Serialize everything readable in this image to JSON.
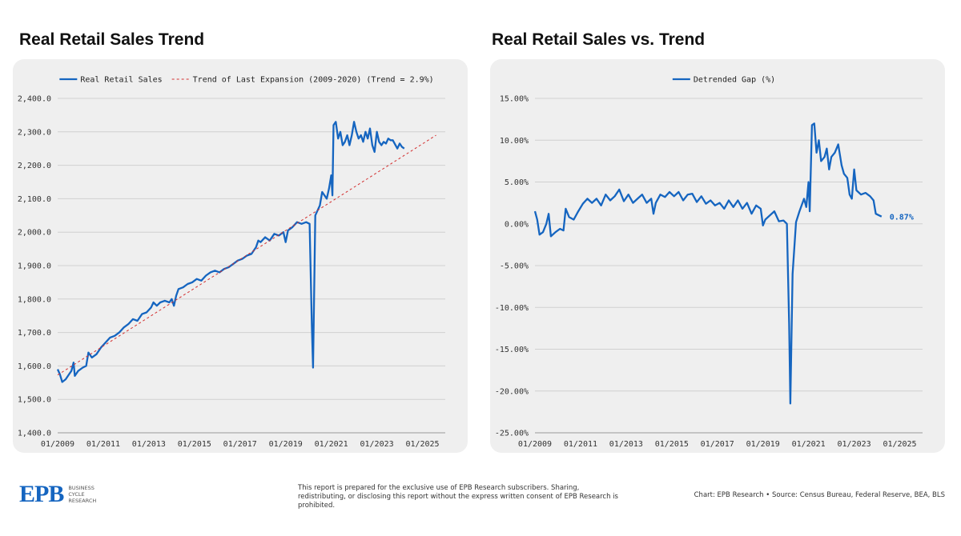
{
  "left_title": "Real Retail Sales Trend",
  "right_title": "Real Retail Sales vs. Trend",
  "footer": {
    "logo_mark": "EPB",
    "logo_line1": "BUSINESS",
    "logo_line2": "CYCLE",
    "logo_line3": "RESEARCH",
    "disclaimer": "This report is prepared for the exclusive use of EPB Research subscribers. Sharing, redistributing, or disclosing this report without the express written consent of EPB Research is prohibited.",
    "source": "Chart: EPB Research  •  Source: Census Bureau, Federal Reserve, BEA, BLS"
  },
  "colors": {
    "series": "#1565c0",
    "trend": "#d32f2f",
    "panel": "#efefef"
  },
  "chart_data": [
    {
      "type": "line",
      "title": "Real Retail Sales Trend",
      "xlim": [
        2009.0,
        2026.0
      ],
      "ylim": [
        1400,
        2400
      ],
      "x_ticks": [
        2009,
        2011,
        2013,
        2015,
        2017,
        2019,
        2021,
        2023,
        2025
      ],
      "x_tick_labels": [
        "01/2009",
        "01/2011",
        "01/2013",
        "01/2015",
        "01/2017",
        "01/2019",
        "01/2021",
        "01/2023",
        "01/2025"
      ],
      "y_ticks": [
        1400,
        1500,
        1600,
        1700,
        1800,
        1900,
        2000,
        2100,
        2200,
        2300,
        2400
      ],
      "y_tick_labels": [
        "1,400.0",
        "1,500.0",
        "1,600.0",
        "1,700.0",
        "1,800.0",
        "1,900.0",
        "2,000.0",
        "2,100.0",
        "2,200.0",
        "2,300.0",
        "2,400.0"
      ],
      "grid": true,
      "legend_position": "top",
      "series": [
        {
          "name": "Real Retail Sales",
          "style": "solid",
          "points": [
            [
              2009.0,
              1590
            ],
            [
              2009.1,
              1575
            ],
            [
              2009.2,
              1552
            ],
            [
              2009.35,
              1560
            ],
            [
              2009.5,
              1575
            ],
            [
              2009.6,
              1585
            ],
            [
              2009.7,
              1610
            ],
            [
              2009.75,
              1570
            ],
            [
              2009.9,
              1585
            ],
            [
              2010.1,
              1595
            ],
            [
              2010.25,
              1600
            ],
            [
              2010.35,
              1640
            ],
            [
              2010.5,
              1625
            ],
            [
              2010.7,
              1635
            ],
            [
              2010.9,
              1655
            ],
            [
              2011.1,
              1670
            ],
            [
              2011.3,
              1685
            ],
            [
              2011.5,
              1690
            ],
            [
              2011.7,
              1700
            ],
            [
              2011.9,
              1715
            ],
            [
              2012.1,
              1725
            ],
            [
              2012.3,
              1740
            ],
            [
              2012.5,
              1735
            ],
            [
              2012.7,
              1755
            ],
            [
              2012.9,
              1760
            ],
            [
              2013.1,
              1775
            ],
            [
              2013.2,
              1790
            ],
            [
              2013.35,
              1780
            ],
            [
              2013.5,
              1790
            ],
            [
              2013.7,
              1795
            ],
            [
              2013.9,
              1790
            ],
            [
              2014.0,
              1800
            ],
            [
              2014.1,
              1780
            ],
            [
              2014.2,
              1810
            ],
            [
              2014.3,
              1830
            ],
            [
              2014.5,
              1835
            ],
            [
              2014.7,
              1845
            ],
            [
              2014.9,
              1850
            ],
            [
              2015.1,
              1860
            ],
            [
              2015.3,
              1855
            ],
            [
              2015.5,
              1870
            ],
            [
              2015.7,
              1880
            ],
            [
              2015.9,
              1885
            ],
            [
              2016.1,
              1880
            ],
            [
              2016.3,
              1890
            ],
            [
              2016.5,
              1895
            ],
            [
              2016.7,
              1905
            ],
            [
              2016.9,
              1915
            ],
            [
              2017.1,
              1920
            ],
            [
              2017.3,
              1930
            ],
            [
              2017.5,
              1935
            ],
            [
              2017.7,
              1955
            ],
            [
              2017.8,
              1975
            ],
            [
              2017.9,
              1970
            ],
            [
              2018.1,
              1985
            ],
            [
              2018.3,
              1975
            ],
            [
              2018.5,
              1995
            ],
            [
              2018.7,
              1990
            ],
            [
              2018.9,
              2000
            ],
            [
              2019.0,
              1970
            ],
            [
              2019.1,
              2005
            ],
            [
              2019.3,
              2015
            ],
            [
              2019.5,
              2030
            ],
            [
              2019.7,
              2025
            ],
            [
              2019.9,
              2030
            ],
            [
              2020.05,
              2025
            ],
            [
              2020.15,
              1720
            ],
            [
              2020.2,
              1595
            ],
            [
              2020.3,
              2050
            ],
            [
              2020.5,
              2080
            ],
            [
              2020.6,
              2120
            ],
            [
              2020.8,
              2100
            ],
            [
              2020.9,
              2130
            ],
            [
              2021.0,
              2170
            ],
            [
              2021.05,
              2110
            ],
            [
              2021.1,
              2320
            ],
            [
              2021.2,
              2330
            ],
            [
              2021.3,
              2280
            ],
            [
              2021.4,
              2300
            ],
            [
              2021.5,
              2260
            ],
            [
              2021.6,
              2270
            ],
            [
              2021.7,
              2290
            ],
            [
              2021.8,
              2260
            ],
            [
              2021.9,
              2290
            ],
            [
              2022.0,
              2330
            ],
            [
              2022.1,
              2300
            ],
            [
              2022.2,
              2280
            ],
            [
              2022.3,
              2290
            ],
            [
              2022.4,
              2270
            ],
            [
              2022.5,
              2300
            ],
            [
              2022.6,
              2280
            ],
            [
              2022.7,
              2310
            ],
            [
              2022.8,
              2260
            ],
            [
              2022.9,
              2240
            ],
            [
              2023.0,
              2300
            ],
            [
              2023.1,
              2270
            ],
            [
              2023.2,
              2260
            ],
            [
              2023.3,
              2270
            ],
            [
              2023.4,
              2265
            ],
            [
              2023.5,
              2280
            ],
            [
              2023.6,
              2275
            ],
            [
              2023.7,
              2275
            ],
            [
              2023.9,
              2250
            ],
            [
              2024.0,
              2265
            ],
            [
              2024.1,
              2255
            ],
            [
              2024.2,
              2250
            ]
          ]
        },
        {
          "name": "Trend of Last Expansion (2009-2020) (Trend = 2.9%)",
          "style": "dashed",
          "points": [
            [
              2009.0,
              1573
            ],
            [
              2025.6,
              2290
            ]
          ]
        }
      ]
    },
    {
      "type": "line",
      "title": "Real Retail Sales vs. Trend",
      "xlim": [
        2009.0,
        2026.0
      ],
      "ylim": [
        -25,
        15
      ],
      "x_ticks": [
        2009,
        2011,
        2013,
        2015,
        2017,
        2019,
        2021,
        2023,
        2025
      ],
      "x_tick_labels": [
        "01/2009",
        "01/2011",
        "01/2013",
        "01/2015",
        "01/2017",
        "01/2019",
        "01/2021",
        "01/2023",
        "01/2025"
      ],
      "y_ticks": [
        -25,
        -20,
        -15,
        -10,
        -5,
        0,
        5,
        10,
        15
      ],
      "y_tick_labels": [
        "-25.00%",
        "-20.00%",
        "-15.00%",
        "-10.00%",
        "-5.00%",
        "0.00%",
        "5.00%",
        "10.00%",
        "15.00%"
      ],
      "grid": true,
      "legend_position": "top",
      "end_label": "0.87%",
      "series": [
        {
          "name": "Detrended Gap (%)",
          "style": "solid",
          "points": [
            [
              2009.0,
              1.5
            ],
            [
              2009.1,
              0.5
            ],
            [
              2009.2,
              -1.3
            ],
            [
              2009.35,
              -1.0
            ],
            [
              2009.5,
              0.0
            ],
            [
              2009.6,
              1.2
            ],
            [
              2009.7,
              -1.5
            ],
            [
              2009.9,
              -1.0
            ],
            [
              2010.1,
              -0.6
            ],
            [
              2010.25,
              -0.8
            ],
            [
              2010.35,
              1.8
            ],
            [
              2010.5,
              0.8
            ],
            [
              2010.7,
              0.5
            ],
            [
              2010.9,
              1.5
            ],
            [
              2011.1,
              2.4
            ],
            [
              2011.3,
              3.0
            ],
            [
              2011.5,
              2.5
            ],
            [
              2011.7,
              3.0
            ],
            [
              2011.9,
              2.2
            ],
            [
              2012.1,
              3.5
            ],
            [
              2012.3,
              2.8
            ],
            [
              2012.5,
              3.3
            ],
            [
              2012.7,
              4.1
            ],
            [
              2012.9,
              2.7
            ],
            [
              2013.1,
              3.5
            ],
            [
              2013.3,
              2.5
            ],
            [
              2013.5,
              3.0
            ],
            [
              2013.7,
              3.5
            ],
            [
              2013.9,
              2.5
            ],
            [
              2014.1,
              3.0
            ],
            [
              2014.2,
              1.2
            ],
            [
              2014.3,
              2.5
            ],
            [
              2014.5,
              3.5
            ],
            [
              2014.7,
              3.2
            ],
            [
              2014.9,
              3.8
            ],
            [
              2015.1,
              3.3
            ],
            [
              2015.3,
              3.8
            ],
            [
              2015.5,
              2.8
            ],
            [
              2015.7,
              3.5
            ],
            [
              2015.9,
              3.6
            ],
            [
              2016.1,
              2.6
            ],
            [
              2016.3,
              3.3
            ],
            [
              2016.5,
              2.4
            ],
            [
              2016.7,
              2.8
            ],
            [
              2016.9,
              2.2
            ],
            [
              2017.1,
              2.5
            ],
            [
              2017.3,
              1.8
            ],
            [
              2017.5,
              2.8
            ],
            [
              2017.7,
              2.0
            ],
            [
              2017.9,
              2.8
            ],
            [
              2018.1,
              1.8
            ],
            [
              2018.3,
              2.5
            ],
            [
              2018.5,
              1.2
            ],
            [
              2018.7,
              2.2
            ],
            [
              2018.9,
              1.8
            ],
            [
              2019.0,
              -0.2
            ],
            [
              2019.1,
              0.5
            ],
            [
              2019.3,
              1.0
            ],
            [
              2019.5,
              1.5
            ],
            [
              2019.7,
              0.3
            ],
            [
              2019.9,
              0.4
            ],
            [
              2020.05,
              0.0
            ],
            [
              2020.15,
              -12.0
            ],
            [
              2020.2,
              -21.5
            ],
            [
              2020.3,
              -6.0
            ],
            [
              2020.45,
              0.2
            ],
            [
              2020.6,
              1.5
            ],
            [
              2020.8,
              3.0
            ],
            [
              2020.9,
              2.0
            ],
            [
              2021.0,
              5.0
            ],
            [
              2021.05,
              1.5
            ],
            [
              2021.15,
              11.8
            ],
            [
              2021.25,
              12.0
            ],
            [
              2021.35,
              8.5
            ],
            [
              2021.45,
              10.0
            ],
            [
              2021.55,
              7.5
            ],
            [
              2021.7,
              8.0
            ],
            [
              2021.8,
              9.0
            ],
            [
              2021.9,
              6.5
            ],
            [
              2022.0,
              8.0
            ],
            [
              2022.15,
              8.5
            ],
            [
              2022.3,
              9.5
            ],
            [
              2022.45,
              7.0
            ],
            [
              2022.55,
              6.0
            ],
            [
              2022.7,
              5.5
            ],
            [
              2022.8,
              3.5
            ],
            [
              2022.9,
              3.0
            ],
            [
              2023.0,
              6.5
            ],
            [
              2023.1,
              4.0
            ],
            [
              2023.3,
              3.5
            ],
            [
              2023.5,
              3.7
            ],
            [
              2023.7,
              3.3
            ],
            [
              2023.85,
              2.8
            ],
            [
              2023.95,
              1.2
            ],
            [
              2024.1,
              1.0
            ],
            [
              2024.2,
              0.87
            ]
          ]
        }
      ]
    }
  ]
}
